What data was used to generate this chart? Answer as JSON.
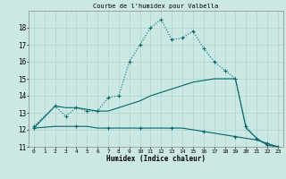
{
  "title": "Courbe de l'humidex pour Valbella",
  "xlabel": "Humidex (Indice chaleur)",
  "bg_color": "#cce8e4",
  "line_color": "#006666",
  "grid_color": "#b0d8d4",
  "xlim": [
    -0.5,
    23.5
  ],
  "ylim": [
    11,
    19
  ],
  "yticks": [
    11,
    12,
    13,
    14,
    15,
    16,
    17,
    18
  ],
  "xticks": [
    0,
    1,
    2,
    3,
    4,
    5,
    6,
    7,
    8,
    9,
    10,
    11,
    12,
    13,
    14,
    15,
    16,
    17,
    18,
    19,
    20,
    21,
    22,
    23
  ],
  "line1_x": [
    0,
    2,
    3,
    4,
    5,
    6,
    7,
    8,
    9,
    10,
    11,
    12,
    13,
    14,
    15,
    16,
    17,
    18,
    19,
    20,
    21,
    22,
    23
  ],
  "line1_y": [
    12.2,
    13.4,
    12.8,
    13.3,
    13.1,
    13.1,
    13.9,
    14.0,
    16.0,
    17.0,
    18.0,
    18.5,
    17.3,
    17.4,
    17.8,
    16.8,
    16.0,
    15.5,
    15.0,
    12.2,
    11.5,
    11.1,
    11.0
  ],
  "line2_x": [
    0,
    2,
    3,
    4,
    5,
    6,
    7,
    8,
    9,
    10,
    11,
    12,
    13,
    14,
    15,
    16,
    17,
    18,
    19,
    20,
    21,
    22,
    23
  ],
  "line2_y": [
    12.1,
    13.4,
    13.3,
    13.3,
    13.2,
    13.1,
    13.1,
    13.3,
    13.5,
    13.7,
    14.0,
    14.2,
    14.4,
    14.6,
    14.8,
    14.9,
    15.0,
    15.0,
    15.0,
    12.1,
    11.5,
    11.1,
    11.0
  ],
  "line3_x": [
    0,
    2,
    3,
    4,
    5,
    6,
    7,
    8,
    9,
    10,
    11,
    12,
    13,
    14,
    15,
    16,
    17,
    18,
    19,
    20,
    21,
    22,
    23
  ],
  "line3_y": [
    12.1,
    12.2,
    12.2,
    12.2,
    12.2,
    12.1,
    12.1,
    12.1,
    12.1,
    12.1,
    12.1,
    12.1,
    12.1,
    12.1,
    12.0,
    11.9,
    11.8,
    11.7,
    11.6,
    11.5,
    11.4,
    11.2,
    11.0
  ]
}
